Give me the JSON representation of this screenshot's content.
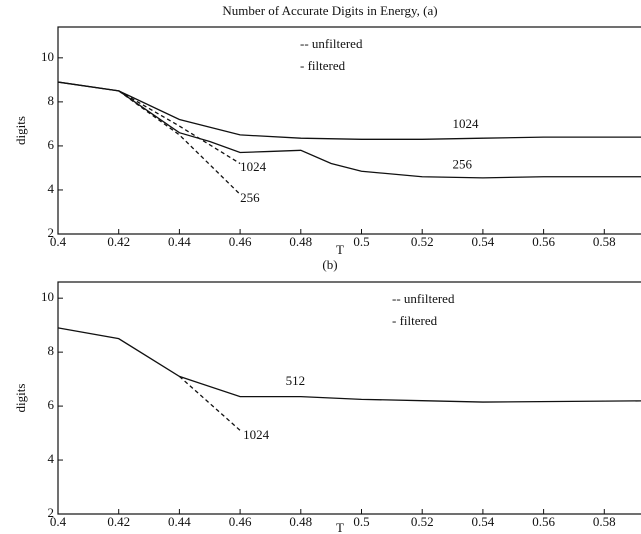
{
  "chart_data": [
    {
      "type": "line",
      "title": "Number of Accurate Digits in Energy, (a)",
      "xlabel": "T",
      "ylabel": "digits",
      "xlim": [
        0.4,
        0.6
      ],
      "ylim": [
        2,
        11.4
      ],
      "xticks": [
        0.4,
        0.42,
        0.44,
        0.46,
        0.48,
        0.5,
        0.52,
        0.54,
        0.56,
        0.58
      ],
      "yticks": [
        2,
        4,
        6,
        8,
        10
      ],
      "legend": [
        "-- unfiltered",
        "- filtered"
      ],
      "legend_corner": "top-center",
      "series": [
        {
          "style": "solid",
          "color": "#111111",
          "x": [
            0.4,
            0.42,
            0.44,
            0.46,
            0.48,
            0.5,
            0.52,
            0.54,
            0.56,
            0.58,
            0.6
          ],
          "values": [
            8.9,
            8.5,
            7.2,
            6.5,
            6.35,
            6.3,
            6.3,
            6.35,
            6.4,
            6.4,
            6.4
          ]
        },
        {
          "style": "solid",
          "color": "#111111",
          "x": [
            0.4,
            0.42,
            0.44,
            0.45,
            0.46,
            0.47,
            0.48,
            0.49,
            0.5,
            0.52,
            0.54,
            0.56,
            0.6
          ],
          "values": [
            8.9,
            8.5,
            6.6,
            6.2,
            5.7,
            5.75,
            5.8,
            5.2,
            4.85,
            4.6,
            4.55,
            4.6,
            4.6
          ]
        },
        {
          "style": "dashed",
          "color": "#111111",
          "x": [
            0.42,
            0.44,
            0.46
          ],
          "values": [
            8.5,
            6.9,
            5.2
          ]
        },
        {
          "style": "dashed",
          "color": "#111111",
          "x": [
            0.42,
            0.44,
            0.46
          ],
          "values": [
            8.5,
            6.5,
            3.8
          ]
        }
      ],
      "annotations": [
        {
          "text": "1024",
          "x": 0.53,
          "y": 6.95
        },
        {
          "text": "256",
          "x": 0.53,
          "y": 5.1
        },
        {
          "text": "1024",
          "x": 0.46,
          "y": 5.0
        },
        {
          "text": "256",
          "x": 0.46,
          "y": 3.6
        }
      ]
    },
    {
      "type": "line",
      "title": "(b)",
      "xlabel": "T",
      "ylabel": "digits",
      "xlim": [
        0.4,
        0.6
      ],
      "ylim": [
        2,
        10.6
      ],
      "xticks": [
        0.4,
        0.42,
        0.44,
        0.46,
        0.48,
        0.5,
        0.52,
        0.54,
        0.56,
        0.58
      ],
      "yticks": [
        2,
        4,
        6,
        8,
        10
      ],
      "legend": [
        "-- unfiltered",
        "- filtered"
      ],
      "legend_corner": "top-right",
      "series": [
        {
          "style": "solid",
          "color": "#111111",
          "x": [
            0.4,
            0.42,
            0.44,
            0.46,
            0.48,
            0.5,
            0.52,
            0.54,
            0.6
          ],
          "values": [
            8.9,
            8.5,
            7.1,
            6.35,
            6.35,
            6.25,
            6.2,
            6.15,
            6.2
          ]
        },
        {
          "style": "dashed",
          "color": "#111111",
          "x": [
            0.44,
            0.46
          ],
          "values": [
            7.1,
            5.1
          ]
        }
      ],
      "annotations": [
        {
          "text": "512",
          "x": 0.475,
          "y": 6.9
        },
        {
          "text": "1024",
          "x": 0.461,
          "y": 4.9
        }
      ]
    }
  ]
}
